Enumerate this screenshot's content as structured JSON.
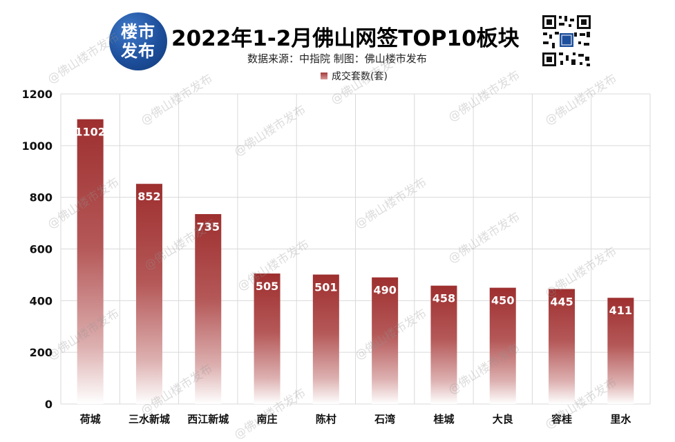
{
  "header": {
    "logo_line1": "楼市",
    "logo_line2": "发布",
    "title": "2022年1-2月佛山网签TOP10板块",
    "source": "数据来源：中指院   制图：佛山楼市发布",
    "qr_icon": "qr-code-icon"
  },
  "watermark_text": "@佛山楼市发布",
  "colors": {
    "bar_top": "#9e2f2f",
    "bar_bottom": "#ffffff",
    "label": "#ffffff",
    "grid": "#d9d9d9"
  },
  "chart_data": {
    "type": "bar",
    "categories": [
      "荷城",
      "三水新城",
      "西江新城",
      "南庄",
      "陈村",
      "石湾",
      "桂城",
      "大良",
      "容桂",
      "里水"
    ],
    "series": [
      {
        "name": "成交套数(套)",
        "values": [
          1102,
          852,
          735,
          505,
          501,
          490,
          458,
          450,
          445,
          411
        ]
      }
    ],
    "yticks": [
      0,
      200,
      400,
      600,
      800,
      1000,
      1200
    ],
    "ylim": [
      0,
      1200
    ],
    "grid": true,
    "legend_position": "top-center"
  }
}
